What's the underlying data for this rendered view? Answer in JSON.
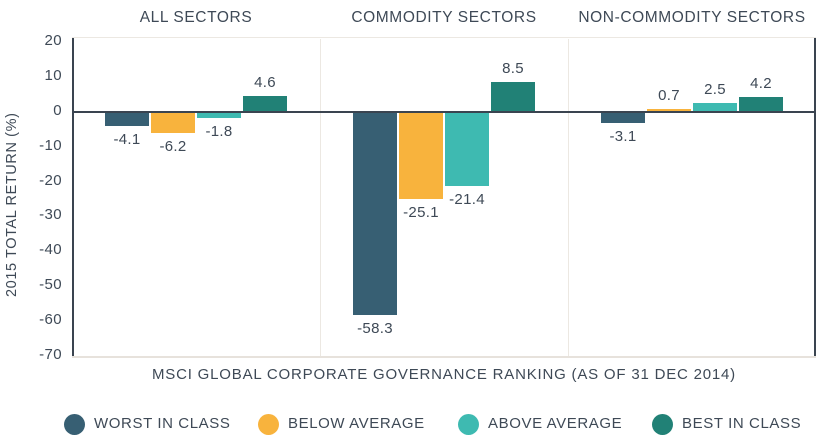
{
  "chart_data": {
    "type": "bar",
    "ylabel": "2015 TOTAL RETURN (%)",
    "xlabel": "MSCI GLOBAL CORPORATE GOVERNANCE RANKING (AS OF 31 DEC 2014)",
    "yticks": [
      "20",
      "10",
      "0",
      "-10",
      "-20",
      "-30",
      "-40",
      "-50",
      "-60",
      "-70"
    ],
    "ytick_values": [
      20,
      10,
      0,
      -10,
      -20,
      -30,
      -40,
      -50,
      -60,
      -70
    ],
    "ylim": [
      -70,
      20
    ],
    "grid": false,
    "legend_position": "bottom",
    "panels": [
      {
        "title": "ALL SECTORS",
        "values": [
          -4.1,
          -6.2,
          -1.8,
          4.6
        ],
        "labels": [
          "-4.1",
          "-6.2",
          "-1.8",
          "4.6"
        ]
      },
      {
        "title": "COMMODITY SECTORS",
        "values": [
          -58.3,
          -25.1,
          -21.4,
          8.5
        ],
        "labels": [
          "-58.3",
          "-25.1",
          "-21.4",
          "8.5"
        ]
      },
      {
        "title": "NON-COMMODITY SECTORS",
        "values": [
          -3.1,
          0.7,
          2.5,
          4.2
        ],
        "labels": [
          "-3.1",
          "0.7",
          "2.5",
          "4.2"
        ]
      }
    ],
    "series": [
      {
        "name": "WORST IN CLASS",
        "color": "#375F73"
      },
      {
        "name": "BELOW AVERAGE",
        "color": "#F8B33D"
      },
      {
        "name": "ABOVE AVERAGE",
        "color": "#3EBAB1"
      },
      {
        "name": "BEST IN CLASS",
        "color": "#218176"
      }
    ],
    "colors": {
      "axis": "#3A4450",
      "text": "#3E4956",
      "grid_light": "#ECE8E2"
    }
  }
}
